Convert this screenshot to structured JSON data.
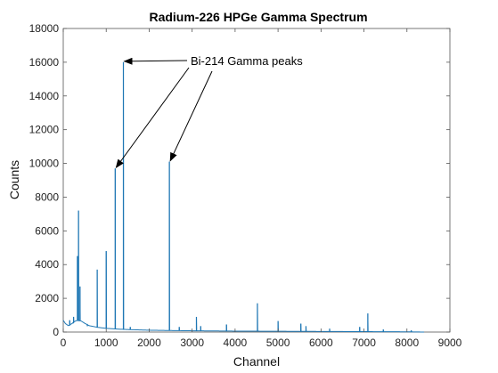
{
  "chart_data": {
    "type": "line",
    "title": "Radium-226 HPGe Gamma Spectrum",
    "xlabel": "Channel",
    "ylabel": "Counts",
    "xlim": [
      0,
      9000
    ],
    "ylim": [
      0,
      18000
    ],
    "x_ticks": [
      0,
      1000,
      2000,
      3000,
      4000,
      5000,
      6000,
      7000,
      8000,
      9000
    ],
    "y_ticks": [
      0,
      2000,
      4000,
      6000,
      8000,
      10000,
      12000,
      14000,
      16000,
      18000
    ],
    "grid": false,
    "line_color": "#1f77b4",
    "annotation": {
      "text": "Bi-214 Gamma peaks",
      "targets": [
        {
          "x": 1400,
          "y": 16000
        },
        {
          "x": 1210,
          "y": 9700
        },
        {
          "x": 2470,
          "y": 10100
        }
      ]
    },
    "peaks": [
      {
        "x": 150,
        "y": 700
      },
      {
        "x": 240,
        "y": 900
      },
      {
        "x": 330,
        "y": 4500
      },
      {
        "x": 355,
        "y": 7200
      },
      {
        "x": 390,
        "y": 2700
      },
      {
        "x": 560,
        "y": 350
      },
      {
        "x": 790,
        "y": 3700
      },
      {
        "x": 1000,
        "y": 4800
      },
      {
        "x": 1210,
        "y": 9700
      },
      {
        "x": 1400,
        "y": 16000
      },
      {
        "x": 1560,
        "y": 300
      },
      {
        "x": 2470,
        "y": 10100
      },
      {
        "x": 2700,
        "y": 300
      },
      {
        "x": 3100,
        "y": 900
      },
      {
        "x": 3200,
        "y": 350
      },
      {
        "x": 3800,
        "y": 450
      },
      {
        "x": 4520,
        "y": 1700
      },
      {
        "x": 5000,
        "y": 650
      },
      {
        "x": 5530,
        "y": 500
      },
      {
        "x": 5650,
        "y": 350
      },
      {
        "x": 6200,
        "y": 200
      },
      {
        "x": 6900,
        "y": 300
      },
      {
        "x": 7090,
        "y": 1100
      },
      {
        "x": 7450,
        "y": 150
      },
      {
        "x": 8100,
        "y": 100
      }
    ],
    "continuum": [
      {
        "x": 0,
        "y": 700
      },
      {
        "x": 50,
        "y": 500
      },
      {
        "x": 120,
        "y": 380
      },
      {
        "x": 200,
        "y": 500
      },
      {
        "x": 280,
        "y": 650
      },
      {
        "x": 340,
        "y": 700
      },
      {
        "x": 420,
        "y": 650
      },
      {
        "x": 500,
        "y": 520
      },
      {
        "x": 600,
        "y": 380
      },
      {
        "x": 800,
        "y": 280
      },
      {
        "x": 1000,
        "y": 220
      },
      {
        "x": 1300,
        "y": 170
      },
      {
        "x": 1600,
        "y": 140
      },
      {
        "x": 2000,
        "y": 110
      },
      {
        "x": 2500,
        "y": 90
      },
      {
        "x": 3000,
        "y": 75
      },
      {
        "x": 4000,
        "y": 55
      },
      {
        "x": 5000,
        "y": 45
      },
      {
        "x": 6000,
        "y": 35
      },
      {
        "x": 7000,
        "y": 25
      },
      {
        "x": 8000,
        "y": 15
      },
      {
        "x": 8400,
        "y": 0
      }
    ]
  }
}
